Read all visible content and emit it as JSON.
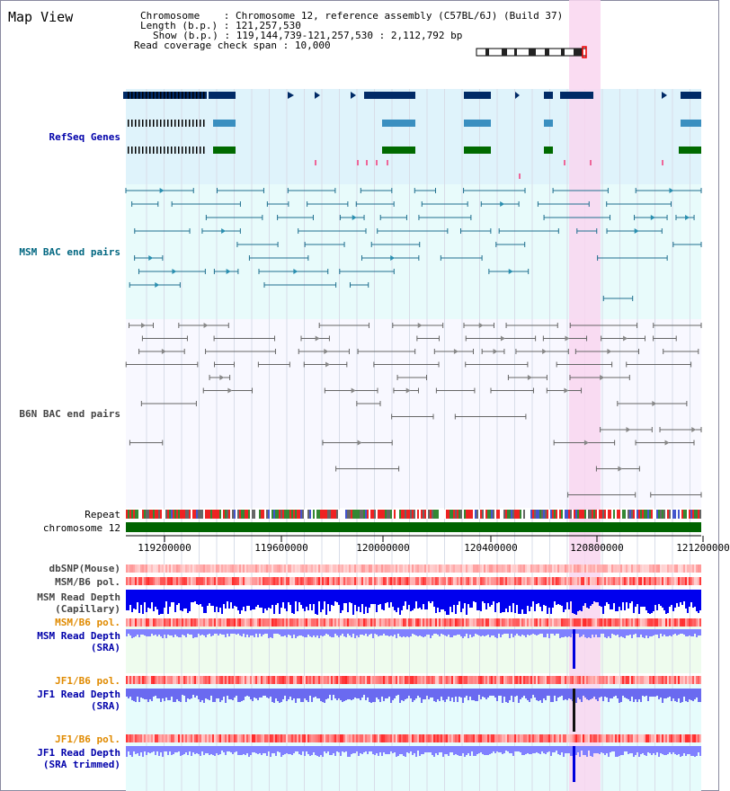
{
  "title": "Map View",
  "info": {
    "chromosome_key": "Chromosome",
    "chromosome_val": "Chromosome 12, reference assembly (C57BL/6J) (Build 37)",
    "length_key": "Length (b.p.)",
    "length_val": "121,257,530",
    "show_key": "Show (b.p.)",
    "show_val": "119,144,739-121,257,530 : 2,112,792 bp",
    "span_key": "Read coverage check span",
    "span_val": "10,000"
  },
  "tracks": {
    "refseq": "RefSeq Genes",
    "msm_bac": "MSM BAC end pairs",
    "b6n_bac": "B6N BAC end pairs",
    "repeat": "Repeat",
    "chromosome": "chromosome 12",
    "dbsnp": "dbSNP(Mouse)",
    "msm_b6_pol_1": "MSM/B6 pol.",
    "msm_depth_cap_1": "MSM Read Depth",
    "msm_depth_cap_2": "(Capillary)",
    "msm_b6_pol_2": "MSM/B6 pol.",
    "msm_depth_sra_1": "MSM Read Depth",
    "msm_depth_sra_2": "(SRA)",
    "jf1_b6_pol_1": "JF1/B6 pol.",
    "jf1_depth_sra_1": "JF1 Read Depth",
    "jf1_depth_sra_2": "(SRA)",
    "jf1_b6_pol_2": "JF1/B6 pol.",
    "jf1_depth_trim_1": "JF1 Read Depth",
    "jf1_depth_trim_2": "(SRA trimmed)"
  },
  "axis_ticks": [
    "119200000",
    "119600000",
    "120000000",
    "120400000",
    "120800000",
    "121200000"
  ],
  "colors": {
    "refseq_bg": "#dff3fb",
    "bac_bg": "#e8fbfb",
    "highlight": "#f9d6f0",
    "chrom_bar": "#006400",
    "depth_blue": "#0000ee",
    "depth_light": "#8080ff",
    "pol_red": "#ff4040"
  }
}
